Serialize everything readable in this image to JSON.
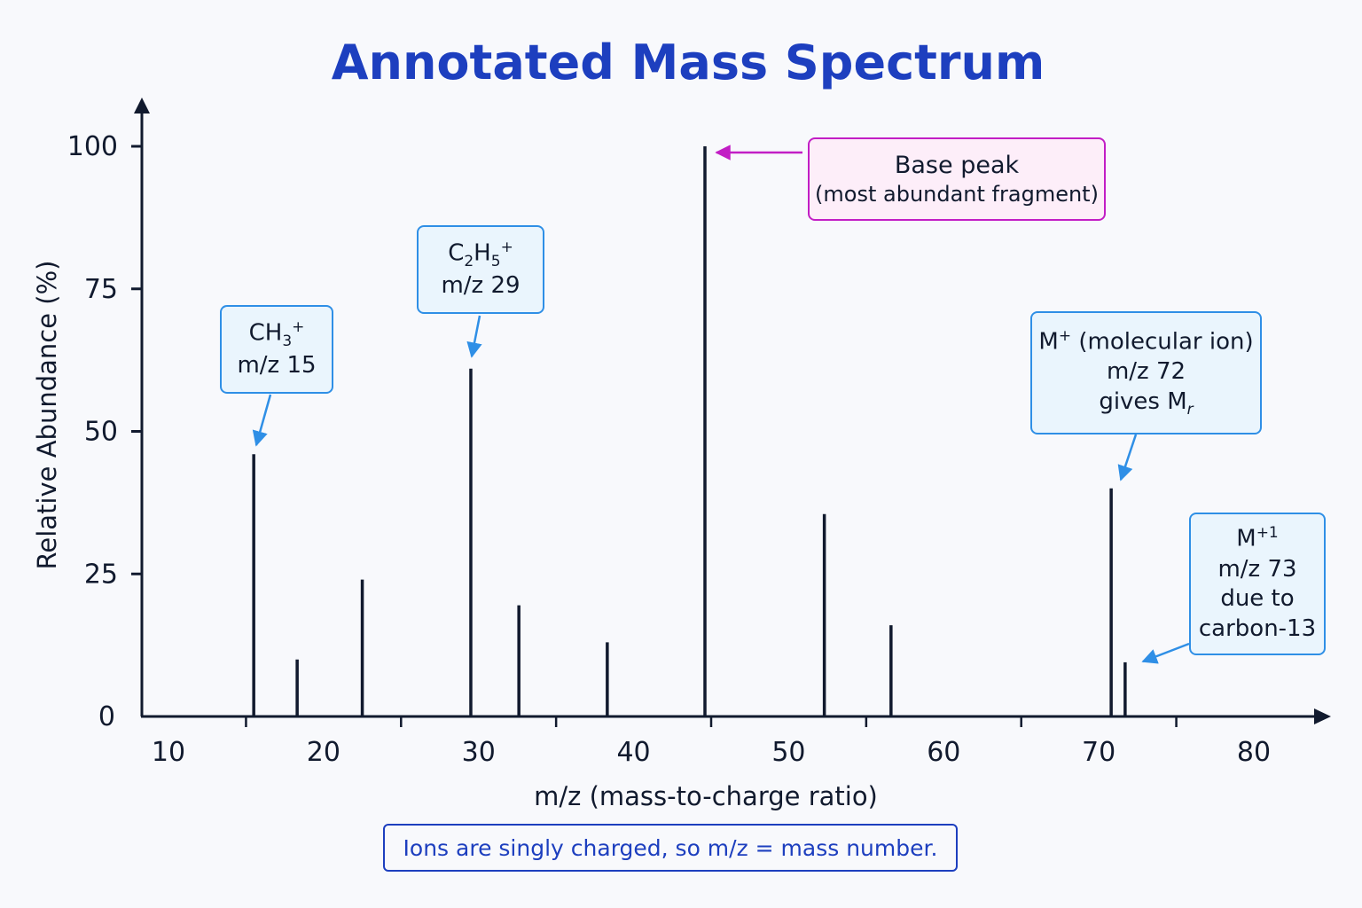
{
  "title": "Annotated Mass Spectrum",
  "chart_data": {
    "type": "bar",
    "title": "Annotated Mass Spectrum",
    "xlabel": "m/z (mass-to-charge ratio)",
    "ylabel": "Relative Abundance (%)",
    "xlim": [
      8.3,
      84
    ],
    "ylim": [
      0,
      100
    ],
    "x_ticks": [
      10,
      20,
      30,
      40,
      50,
      60,
      70,
      80
    ],
    "y_ticks": [
      0,
      25,
      50,
      75,
      100
    ],
    "grid": false,
    "peaks": [
      {
        "mz": 15.5,
        "abundance": 46
      },
      {
        "mz": 18.3,
        "abundance": 10
      },
      {
        "mz": 22.5,
        "abundance": 24
      },
      {
        "mz": 29.5,
        "abundance": 61
      },
      {
        "mz": 32.6,
        "abundance": 19.5
      },
      {
        "mz": 38.3,
        "abundance": 13
      },
      {
        "mz": 44.6,
        "abundance": 100
      },
      {
        "mz": 52.3,
        "abundance": 35.5
      },
      {
        "mz": 56.6,
        "abundance": 16
      },
      {
        "mz": 70.8,
        "abundance": 40
      },
      {
        "mz": 71.7,
        "abundance": 9.5
      }
    ]
  },
  "annotations": {
    "ch3": {
      "formula_main": "CH",
      "formula_sub": "3",
      "formula_sup": "+",
      "mz": "m/z 15"
    },
    "c2h5": {
      "c": "C",
      "sub1": "2",
      "h": "H",
      "sub2": "5",
      "sup": "+",
      "mz": "m/z 29"
    },
    "base": {
      "line1": "Base peak",
      "line2": "(most abundant fragment)"
    },
    "molecular": {
      "m": "M",
      "sup": "+",
      "rest": " (molecular ion)",
      "mz": "m/z 72",
      "gives": "gives M",
      "gives_sub": "r"
    },
    "m1": {
      "m": "M",
      "sup": "+1",
      "mz": "m/z 73",
      "line3": "due to",
      "line4": "carbon-13"
    }
  },
  "note": "Ions are singly charged, so m/z = mass number.",
  "colors": {
    "title": "#1d3fbf",
    "axis": "#111a2e",
    "peak": "#111a2e",
    "callout_blue": "#2f8fe6",
    "callout_magenta": "#c21ec5",
    "note": "#1d3fbf"
  }
}
